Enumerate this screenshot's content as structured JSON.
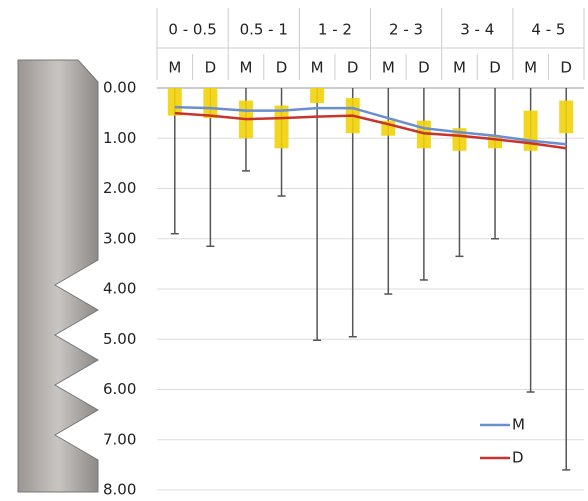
{
  "chart_data": {
    "type": "box",
    "groups": [
      "0 - 0.5",
      "0.5 - 1",
      "1 - 2",
      "2 - 3",
      "3 - 4",
      "4 - 5"
    ],
    "categories": [
      "M",
      "D",
      "M",
      "D",
      "M",
      "D",
      "M",
      "D",
      "M",
      "D",
      "M",
      "D"
    ],
    "boxes": {
      "color": "#f2d20a",
      "whisker_color": "#555555",
      "low": [
        0,
        0,
        0,
        0,
        0,
        0,
        0,
        0,
        0,
        0,
        0,
        0
      ],
      "q1": [
        0.0,
        0.0,
        0.25,
        0.35,
        0.0,
        0.2,
        0.65,
        0.65,
        0.8,
        0.95,
        0.45,
        0.25
      ],
      "q3": [
        0.55,
        0.6,
        1.0,
        1.2,
        0.3,
        0.9,
        0.95,
        1.2,
        1.25,
        1.2,
        1.25,
        0.9
      ],
      "high": [
        2.9,
        3.15,
        1.65,
        2.15,
        5.02,
        4.95,
        4.1,
        3.82,
        3.35,
        3.0,
        6.05,
        7.6
      ]
    },
    "series": [
      {
        "name": "M",
        "color": "#6a8fd0",
        "values": [
          0.38,
          0.4,
          0.45,
          0.45,
          0.4,
          0.4,
          0.6,
          0.8,
          0.88,
          0.95,
          1.05,
          1.12
        ]
      },
      {
        "name": "D",
        "color": "#c8342c",
        "values": [
          0.5,
          0.55,
          0.62,
          0.6,
          0.57,
          0.55,
          0.72,
          0.9,
          0.95,
          1.02,
          1.1,
          1.2
        ]
      }
    ],
    "ylim": [
      0,
      8
    ],
    "y_inverted": true,
    "yticks": [
      {
        "value": 0,
        "label": "0.00"
      },
      {
        "value": 1,
        "label": "1.00"
      },
      {
        "value": 2,
        "label": "2.00"
      },
      {
        "value": 3,
        "label": "3.00"
      },
      {
        "value": 4,
        "label": "4.00"
      },
      {
        "value": 5,
        "label": "5.00"
      },
      {
        "value": 6,
        "label": "6.00"
      },
      {
        "value": 7,
        "label": "7.00"
      },
      {
        "value": 8,
        "label": "8.00"
      }
    ],
    "grid": true,
    "legend": "bottom-right"
  }
}
